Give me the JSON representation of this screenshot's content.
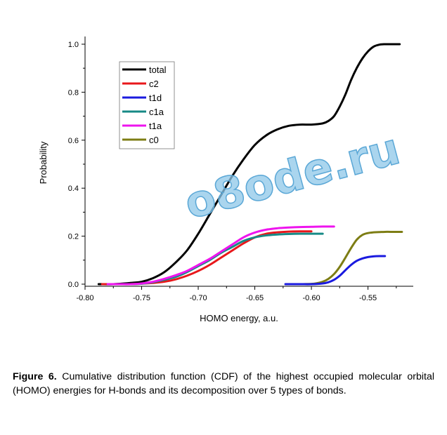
{
  "chart_data": {
    "type": "line",
    "xlabel": "HOMO energy, a.u.",
    "ylabel": "Probability",
    "xlim": [
      -0.8,
      -0.51
    ],
    "ylim": [
      0.0,
      1.0
    ],
    "xticks": [
      "-0.80",
      "-0.75",
      "-0.70",
      "-0.65",
      "-0.60",
      "-0.55"
    ],
    "xtick_values": [
      -0.8,
      -0.75,
      -0.7,
      -0.65,
      -0.6,
      -0.55
    ],
    "yticks": [
      "0.0",
      "0.2",
      "0.4",
      "0.6",
      "0.8",
      "1.0"
    ],
    "ytick_values": [
      0.0,
      0.2,
      0.4,
      0.6,
      0.8,
      1.0
    ],
    "grid": false,
    "legend_position": "top-left",
    "series": [
      {
        "name": "total",
        "color": "#000000",
        "x": [
          -0.788,
          -0.775,
          -0.76,
          -0.75,
          -0.74,
          -0.73,
          -0.72,
          -0.71,
          -0.7,
          -0.69,
          -0.68,
          -0.67,
          -0.66,
          -0.65,
          -0.64,
          -0.63,
          -0.62,
          -0.61,
          -0.6,
          -0.59,
          -0.585,
          -0.58,
          -0.575,
          -0.57,
          -0.565,
          -0.56,
          -0.555,
          -0.55,
          -0.545,
          -0.54,
          -0.535,
          -0.53,
          -0.522
        ],
        "y": [
          0.0,
          0.0,
          0.005,
          0.01,
          0.025,
          0.05,
          0.09,
          0.14,
          0.21,
          0.29,
          0.37,
          0.45,
          0.52,
          0.58,
          0.62,
          0.645,
          0.66,
          0.665,
          0.665,
          0.67,
          0.68,
          0.7,
          0.74,
          0.79,
          0.85,
          0.9,
          0.94,
          0.97,
          0.99,
          0.998,
          1.0,
          1.0,
          1.0
        ]
      },
      {
        "name": "c2",
        "color": "#e8171b",
        "x": [
          -0.785,
          -0.77,
          -0.76,
          -0.75,
          -0.74,
          -0.73,
          -0.72,
          -0.71,
          -0.7,
          -0.69,
          -0.68,
          -0.67,
          -0.66,
          -0.65,
          -0.64,
          -0.63,
          -0.62,
          -0.61,
          -0.6
        ],
        "y": [
          0.0,
          0.0,
          0.0,
          0.002,
          0.005,
          0.01,
          0.02,
          0.035,
          0.055,
          0.08,
          0.11,
          0.14,
          0.17,
          0.195,
          0.21,
          0.216,
          0.219,
          0.22,
          0.22
        ]
      },
      {
        "name": "t1d",
        "color": "#1a1adf",
        "x": [
          -0.623,
          -0.61,
          -0.6,
          -0.59,
          -0.585,
          -0.58,
          -0.575,
          -0.57,
          -0.565,
          -0.56,
          -0.555,
          -0.55,
          -0.545,
          -0.54,
          -0.535
        ],
        "y": [
          0.0,
          0.0,
          0.0,
          0.003,
          0.008,
          0.018,
          0.035,
          0.058,
          0.08,
          0.097,
          0.107,
          0.113,
          0.116,
          0.117,
          0.117
        ]
      },
      {
        "name": "c1a",
        "color": "#178a86",
        "x": [
          -0.78,
          -0.77,
          -0.76,
          -0.75,
          -0.74,
          -0.73,
          -0.72,
          -0.71,
          -0.7,
          -0.69,
          -0.68,
          -0.67,
          -0.66,
          -0.65,
          -0.64,
          -0.63,
          -0.62,
          -0.61,
          -0.6,
          -0.59
        ],
        "y": [
          0.0,
          0.0,
          0.0,
          0.002,
          0.008,
          0.018,
          0.03,
          0.05,
          0.075,
          0.1,
          0.13,
          0.155,
          0.18,
          0.195,
          0.203,
          0.207,
          0.209,
          0.21,
          0.21,
          0.21
        ]
      },
      {
        "name": "t1a",
        "color": "#ee14ee",
        "x": [
          -0.78,
          -0.77,
          -0.76,
          -0.75,
          -0.74,
          -0.73,
          -0.72,
          -0.71,
          -0.7,
          -0.69,
          -0.68,
          -0.67,
          -0.66,
          -0.65,
          -0.64,
          -0.63,
          -0.62,
          -0.61,
          -0.6,
          -0.59,
          -0.58
        ],
        "y": [
          0.0,
          0.0,
          0.0,
          0.003,
          0.01,
          0.022,
          0.037,
          0.055,
          0.08,
          0.105,
          0.135,
          0.165,
          0.195,
          0.215,
          0.227,
          0.233,
          0.236,
          0.238,
          0.239,
          0.24,
          0.24
        ]
      },
      {
        "name": "c0",
        "color": "#7d7d14",
        "x": [
          -0.61,
          -0.6,
          -0.595,
          -0.59,
          -0.585,
          -0.58,
          -0.575,
          -0.57,
          -0.565,
          -0.56,
          -0.555,
          -0.55,
          -0.545,
          -0.54,
          -0.535,
          -0.53,
          -0.52
        ],
        "y": [
          0.0,
          0.001,
          0.004,
          0.01,
          0.022,
          0.042,
          0.072,
          0.11,
          0.15,
          0.185,
          0.205,
          0.213,
          0.216,
          0.217,
          0.218,
          0.218,
          0.218
        ]
      }
    ]
  },
  "watermark": "o8ode.ru",
  "caption": {
    "label": "Figure 6.",
    "text": " Cumulative distribution function (CDF) of the highest occupied molecular orbital (HOMO) energies for H-bonds and its decomposition over 5 types of bonds."
  }
}
